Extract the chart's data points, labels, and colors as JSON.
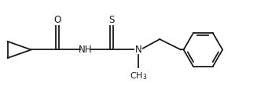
{
  "background": "#ffffff",
  "line_color": "#1a1a1a",
  "line_width": 1.3,
  "font_size": 8.5,
  "fig_width": 3.27,
  "fig_height": 1.34,
  "dpi": 100,
  "xlim": [
    0.0,
    9.2
  ],
  "ylim": [
    0.8,
    3.6
  ]
}
